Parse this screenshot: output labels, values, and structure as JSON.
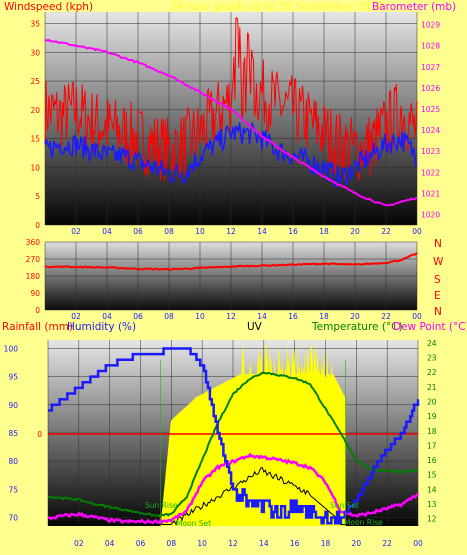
{
  "header": {
    "windspeed_label": "Windspeed (kph)",
    "barometer_label": "Barometer (mb)",
    "title_faint": "24 hour graph up to 28 September 2019"
  },
  "colors": {
    "bg": "#ffff90",
    "wind": "#ff0000",
    "gust_avg": "#1a1aff",
    "barometer": "#ff00ff",
    "direction": "#ff0000",
    "humidity": "#1a1aff",
    "temperature": "#008000",
    "dewpoint": "#ff00ff",
    "uv": "#ffff00",
    "rain": "#ff0000",
    "sun_moon": "#008000"
  },
  "direction_labels": [
    "N",
    "W",
    "S",
    "E",
    "N"
  ],
  "bottom_header": {
    "rainfall": "Rainfall (mm)",
    "humidity": "Humidity (%)",
    "uv": "UV",
    "temperature": "Temperature (°C)",
    "dewpoint": "Dew Point (°C)"
  },
  "annotations": {
    "sunrise": "Sun Rise",
    "moonset": "Moon Set",
    "sunset": "Sun Set",
    "moonrise": "Moon Rise"
  },
  "chart_data": [
    {
      "type": "line",
      "title": "",
      "xlabel": "",
      "x_ticks": [
        "02",
        "04",
        "06",
        "08",
        "10",
        "12",
        "14",
        "16",
        "18",
        "20",
        "22",
        "00"
      ],
      "ylabel": "Windspeed (kph)",
      "y_ticks": [
        0,
        5,
        10,
        15,
        20,
        25,
        30,
        35
      ],
      "ylim": [
        0,
        37
      ],
      "y2label": "Barometer (mb)",
      "y2_ticks": [
        1020,
        1021,
        1022,
        1023,
        1024,
        1025,
        1026,
        1027,
        1028,
        1029
      ],
      "y2lim": [
        1019.5,
        1029.6
      ],
      "series": [
        {
          "role": "wind-gust",
          "x": [
            0,
            1,
            2,
            3,
            4,
            5,
            6,
            7,
            8,
            9,
            10,
            11,
            12,
            13,
            14,
            15,
            16,
            17,
            18,
            19,
            20,
            21,
            22,
            23,
            24
          ],
          "values": [
            20,
            19,
            20,
            18,
            17,
            16,
            15,
            14,
            13,
            14,
            16,
            19,
            22,
            24,
            23,
            21,
            20,
            18,
            16,
            14,
            13,
            14,
            17,
            20,
            16
          ]
        },
        {
          "role": "wind-average",
          "x": [
            0,
            1,
            2,
            3,
            4,
            5,
            6,
            7,
            8,
            9,
            10,
            11,
            12,
            13,
            14,
            15,
            16,
            17,
            18,
            19,
            20,
            21,
            22,
            23,
            24
          ],
          "values": [
            13,
            14,
            14,
            13,
            12,
            12,
            11,
            10,
            9,
            9,
            12,
            14,
            16,
            16,
            15,
            13,
            12,
            11,
            10,
            8,
            10,
            12,
            14,
            15,
            12
          ]
        },
        {
          "role": "barometer",
          "x": [
            0,
            2,
            4,
            6,
            8,
            10,
            12,
            14,
            16,
            18,
            20,
            21,
            22,
            23,
            24
          ],
          "values": [
            1028.3,
            1028.0,
            1027.7,
            1027.2,
            1026.6,
            1025.8,
            1025.0,
            1023.7,
            1022.7,
            1021.8,
            1021.0,
            1020.7,
            1020.4,
            1020.6,
            1020.8
          ]
        }
      ]
    },
    {
      "type": "line",
      "title": "",
      "ylabel": "",
      "y_ticks": [
        0,
        90,
        180,
        270,
        360
      ],
      "ylim": [
        0,
        360
      ],
      "series": [
        {
          "role": "wind-direction",
          "x": [
            0,
            2,
            4,
            6,
            8,
            10,
            12,
            14,
            16,
            18,
            20,
            22,
            23,
            24
          ],
          "values": [
            230,
            228,
            225,
            218,
            215,
            222,
            230,
            235,
            240,
            245,
            240,
            250,
            265,
            300
          ]
        }
      ]
    },
    {
      "type": "line",
      "title": "",
      "ylabel": "Humidity (%)",
      "y_ticks": [
        70,
        75,
        80,
        85,
        90,
        95,
        100
      ],
      "ylim": [
        68.5,
        101.5
      ],
      "y2label": "Temperature (°C)",
      "y2_ticks": [
        12,
        13,
        14,
        15,
        16,
        17,
        18,
        19,
        20,
        21,
        22,
        23,
        24
      ],
      "y2lim": [
        11.5,
        24.2
      ],
      "rain_tick": "0",
      "series": [
        {
          "role": "humidity",
          "x": [
            0,
            1,
            2,
            3,
            4,
            5,
            6,
            7,
            8,
            9,
            10,
            11,
            12,
            13,
            14,
            15,
            16,
            17,
            18,
            19,
            20,
            21,
            22,
            23,
            24
          ],
          "values": [
            89,
            91,
            93,
            95,
            97,
            98,
            99,
            99,
            100,
            100,
            97,
            85,
            75,
            72,
            72,
            71,
            72,
            71,
            70,
            70,
            73,
            78,
            82,
            85,
            91
          ]
        },
        {
          "role": "temperature",
          "x": [
            0,
            1,
            2,
            3,
            4,
            5,
            6,
            7,
            8,
            9,
            10,
            11,
            12,
            13,
            14,
            15,
            16,
            17,
            18,
            19,
            20,
            21,
            22,
            23,
            24
          ],
          "values": [
            13.5,
            13.4,
            13.3,
            13.0,
            12.8,
            12.6,
            12.4,
            12.2,
            12.3,
            13.5,
            16.0,
            18.5,
            20.5,
            21.5,
            22.0,
            21.8,
            21.6,
            21.2,
            19.5,
            17.8,
            16.0,
            15.3,
            15.3,
            15.2,
            15.3
          ]
        },
        {
          "role": "dewpoint",
          "x": [
            0,
            1,
            2,
            3,
            4,
            5,
            6,
            7,
            8,
            9,
            10,
            11,
            12,
            13,
            14,
            15,
            16,
            17,
            18,
            19,
            20,
            21,
            22,
            23,
            24
          ],
          "values": [
            12.0,
            12.2,
            12.3,
            12.1,
            11.9,
            11.8,
            11.8,
            11.8,
            11.9,
            12.5,
            14.5,
            15.5,
            15.9,
            16.3,
            16.2,
            16.0,
            15.8,
            15.5,
            14.5,
            12.5,
            12.2,
            12.4,
            12.7,
            13.0,
            13.7
          ]
        }
      ]
    }
  ]
}
